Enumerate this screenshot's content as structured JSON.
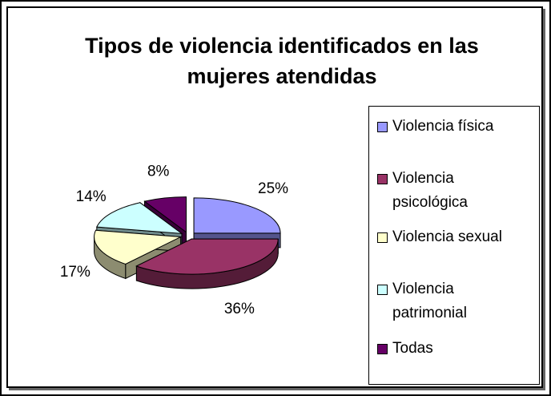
{
  "chart_data": {
    "type": "pie",
    "title": "Tipos de violencia identificados en las mujeres atendidas",
    "categories": [
      "Violencia física",
      "Violencia psicológica",
      "Violencia sexual",
      "Violencia patrimonial",
      "Todas"
    ],
    "values": [
      25,
      36,
      17,
      14,
      8
    ],
    "value_labels": [
      "25%",
      "36%",
      "17%",
      "14%",
      "8%"
    ],
    "colors": [
      "#9999ff",
      "#993366",
      "#ffffcc",
      "#ccffff",
      "#660066"
    ],
    "legend": "right"
  }
}
